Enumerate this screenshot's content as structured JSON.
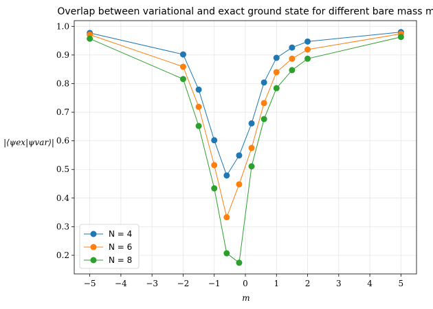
{
  "chart_data": {
    "type": "line",
    "title": "Overlap between variational and exact ground state for different bare mass m",
    "xlabel": "m",
    "ylabel": "|⟨ψex|ψvar⟩|",
    "xlim": [
      -5.5,
      5.5
    ],
    "ylim": [
      0.135,
      1.02
    ],
    "xticks": [
      -5,
      -4,
      -3,
      -2,
      -1,
      0,
      1,
      2,
      3,
      4,
      5
    ],
    "xtick_labels": [
      "−5",
      "−4",
      "−3",
      "−2",
      "−1",
      "0",
      "1",
      "2",
      "3",
      "4",
      "5"
    ],
    "yticks": [
      0.2,
      0.3,
      0.4,
      0.5,
      0.6,
      0.7,
      0.8,
      0.9,
      1.0
    ],
    "ytick_labels": [
      "0.2",
      "0.3",
      "0.4",
      "0.5",
      "0.6",
      "0.7",
      "0.8",
      "0.9",
      "1.0"
    ],
    "grid": true,
    "legend_position": "lower-left",
    "x": [
      -5,
      -2,
      -1.5,
      -1,
      -0.6,
      -0.2,
      0.2,
      0.6,
      1,
      1.5,
      2,
      5
    ],
    "series": [
      {
        "name": "N = 4",
        "color": "#1f77b4",
        "values": [
          0.977,
          0.902,
          0.779,
          0.602,
          0.479,
          0.549,
          0.661,
          0.804,
          0.89,
          0.926,
          0.947,
          0.98
        ]
      },
      {
        "name": "N = 6",
        "color": "#ff7f0e",
        "values": [
          0.971,
          0.859,
          0.719,
          0.515,
          0.333,
          0.448,
          0.575,
          0.732,
          0.84,
          0.887,
          0.919,
          0.974
        ]
      },
      {
        "name": "N = 8",
        "color": "#2ca02c",
        "values": [
          0.957,
          0.816,
          0.652,
          0.434,
          0.207,
          0.174,
          0.511,
          0.676,
          0.784,
          0.847,
          0.887,
          0.963
        ]
      }
    ]
  }
}
